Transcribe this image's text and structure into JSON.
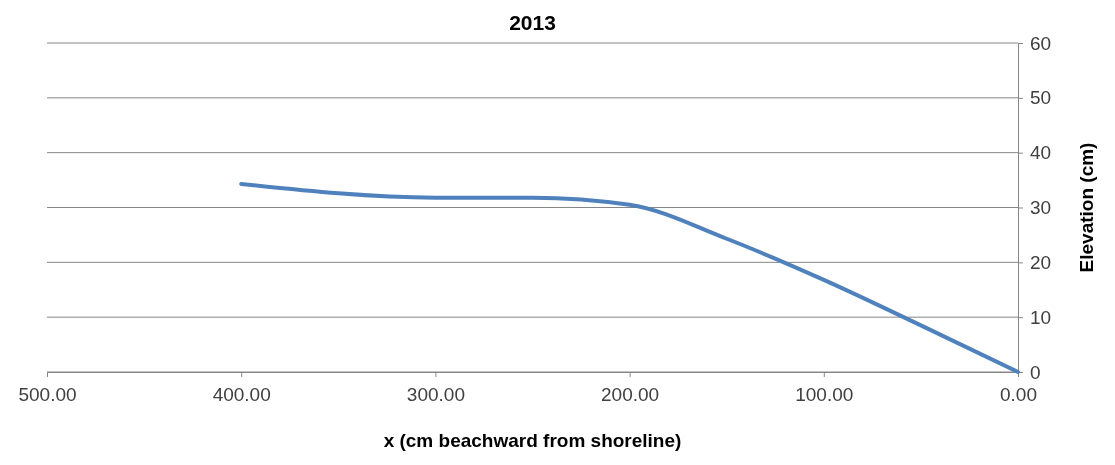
{
  "chart_data": {
    "type": "line",
    "title": "2013",
    "xlabel": "x (cm beachward from shoreline)",
    "ylabel": "Elevation (cm)",
    "x": [
      400,
      300,
      250,
      200,
      150,
      100,
      50,
      0
    ],
    "series": [
      {
        "color": "#4f81bd",
        "values": [
          34.3,
          31.8,
          31.8,
          30.5,
          24.3,
          16.8,
          8.5,
          0
        ]
      }
    ],
    "xlim": [
      500,
      0
    ],
    "xticks": [
      {
        "value": 500,
        "label": "500.00"
      },
      {
        "value": 400,
        "label": "400.00"
      },
      {
        "value": 300,
        "label": "300.00"
      },
      {
        "value": 200,
        "label": "200.00"
      },
      {
        "value": 100,
        "label": "100.00"
      },
      {
        "value": 0,
        "label": "0.00"
      }
    ],
    "ylim": [
      0,
      60
    ],
    "yticks": [
      0,
      10,
      20,
      30,
      40,
      50,
      60
    ],
    "grid": "y",
    "marker": "none",
    "line_style": "solid"
  }
}
